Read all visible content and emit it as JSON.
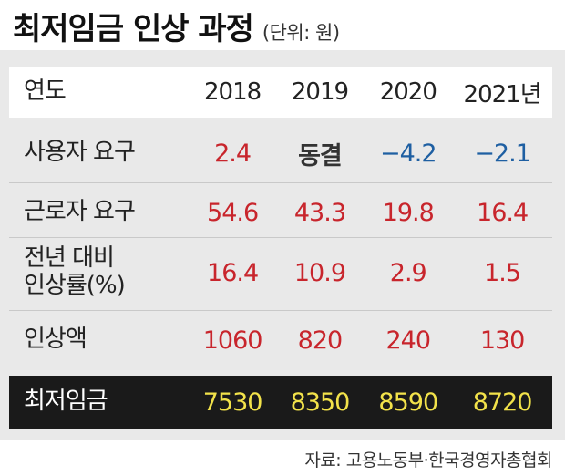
{
  "title": "최저임금 인상 과정",
  "unit_note": "(단위: 원)",
  "table": {
    "header": {
      "label": "연도",
      "years": [
        "2018",
        "2019",
        "2020",
        "2021년"
      ]
    },
    "rows": [
      {
        "label": "사용자 요구",
        "values": [
          "2.4",
          "동결",
          "−4.2",
          "−2.1"
        ]
      },
      {
        "label": "근로자 요구",
        "values": [
          "54.6",
          "43.3",
          "19.8",
          "16.4"
        ]
      },
      {
        "label_line1": "전년 대비",
        "label_line2": "인상률(%)",
        "values": [
          "16.4",
          "10.9",
          "2.9",
          "1.5"
        ]
      },
      {
        "label": "인상액",
        "values": [
          "1060",
          "820",
          "240",
          "130"
        ]
      },
      {
        "label": "최저임금",
        "values": [
          "7530",
          "8350",
          "8590",
          "8720"
        ]
      }
    ]
  },
  "colors": {
    "increase": "#c8252c",
    "decrease": "#1e5fa2",
    "highlight_bg": "#1a1a1a",
    "highlight_text": "#f2e24a",
    "panel_bg": "#e9e9e9"
  },
  "source": "자료: 고용노동부·한국경영자총협회"
}
